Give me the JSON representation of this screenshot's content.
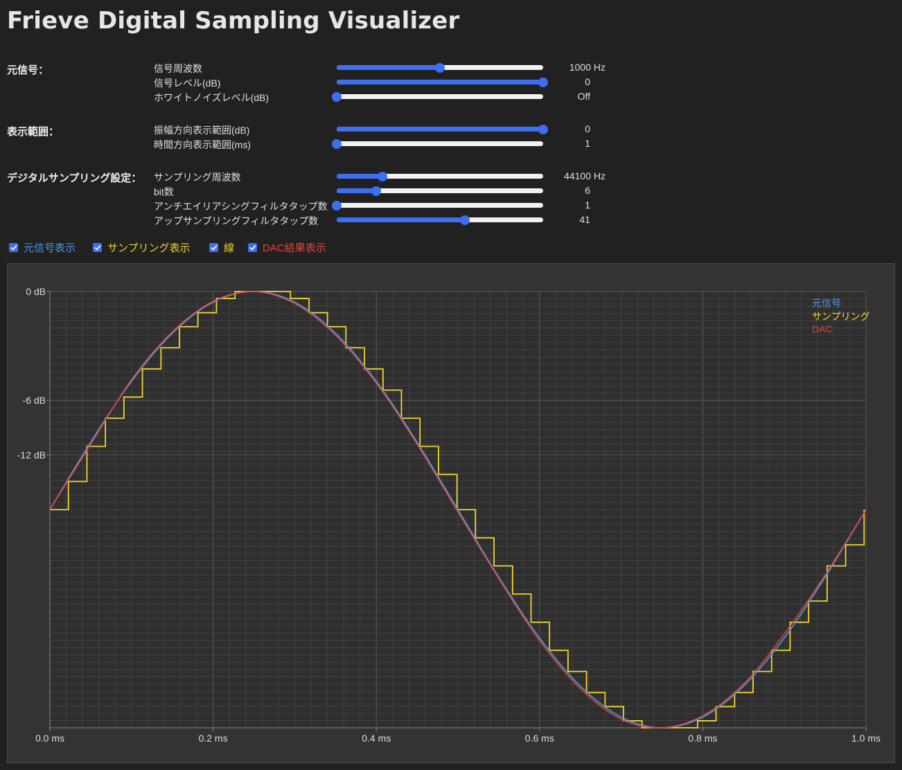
{
  "page": {
    "title": "Frieve Digital Sampling Visualizer"
  },
  "sections": {
    "signal": {
      "label": "元信号：",
      "params": [
        {
          "label": "信号周波数",
          "value": "1000 Hz",
          "position": 0.5
        },
        {
          "label": "信号レベル(dB)",
          "value": "0",
          "position": 1.0
        },
        {
          "label": "ホワイトノイズレベル(dB)",
          "value": "Off",
          "position": 0.0
        }
      ]
    },
    "display": {
      "label": "表示範囲：",
      "params": [
        {
          "label": "振幅方向表示範囲(dB)",
          "value": "0",
          "position": 1.0
        },
        {
          "label": "時間方向表示範囲(ms)",
          "value": "1",
          "position": 0.0
        }
      ]
    },
    "sampling": {
      "label": "デジタルサンプリング設定：",
      "params": [
        {
          "label": "サンプリング周波数",
          "value": "44100 Hz",
          "position": 0.22
        },
        {
          "label": "bit数",
          "value": "6",
          "position": 0.19
        },
        {
          "label": "アンチエイリアシングフィルタタップ数",
          "value": "1",
          "position": 0.0
        },
        {
          "label": "アップサンプリングフィルタタップ数",
          "value": "41",
          "position": 0.62
        }
      ]
    }
  },
  "toggles": [
    {
      "label": "元信号表示",
      "checked": true,
      "color": "#4d9ce6"
    },
    {
      "label": "サンプリング表示",
      "checked": true,
      "color": "#f2d62e"
    },
    {
      "label": "線",
      "checked": true,
      "color": "#f2d62e"
    },
    {
      "label": "DAC結果表示",
      "checked": true,
      "color": "#e8453c"
    }
  ],
  "chart_data": {
    "type": "line",
    "title": "",
    "xlabel": "",
    "ylabel": "",
    "xlim": [
      0,
      1.0
    ],
    "ylim": [
      -1,
      1
    ],
    "x_ticks": [
      {
        "value": 0.0,
        "label": "0.0 ms"
      },
      {
        "value": 0.2,
        "label": "0.2 ms"
      },
      {
        "value": 0.4,
        "label": "0.4 ms"
      },
      {
        "value": 0.6,
        "label": "0.6 ms"
      },
      {
        "value": 0.8,
        "label": "0.8 ms"
      },
      {
        "value": 1.0,
        "label": "1.0 ms"
      }
    ],
    "y_ticks": [
      {
        "value": 1.0,
        "label": "0 dB"
      },
      {
        "value": 0.501,
        "label": "-6 dB"
      },
      {
        "value": 0.251,
        "label": "-12 dB"
      }
    ],
    "grid": true,
    "legend_position": "top-right",
    "series": [
      {
        "name": "元信号",
        "kind": "smooth-line",
        "color": "#4d9ce6",
        "x": [
          0.0,
          0.05,
          0.1,
          0.15,
          0.2,
          0.25,
          0.3,
          0.35,
          0.4,
          0.45,
          0.5,
          0.55,
          0.6,
          0.65,
          0.7,
          0.75,
          0.8,
          0.85,
          0.9,
          0.95,
          1.0
        ],
        "y": [
          0.0,
          0.309,
          0.588,
          0.809,
          0.951,
          1.0,
          0.951,
          0.809,
          0.588,
          0.309,
          0.0,
          -0.309,
          -0.588,
          -0.809,
          -0.951,
          -1.0,
          -0.951,
          -0.809,
          -0.588,
          -0.309,
          0.0
        ]
      },
      {
        "name": "サンプリング",
        "kind": "step",
        "color": "#f2d62e",
        "x": [
          0.0,
          0.0227,
          0.0454,
          0.068,
          0.0907,
          0.1134,
          0.1361,
          0.1587,
          0.1814,
          0.2041,
          0.2268,
          0.2494,
          0.2721,
          0.2948,
          0.3175,
          0.3401,
          0.3628,
          0.3855,
          0.4082,
          0.4308,
          0.4535,
          0.4762,
          0.4989,
          0.5215,
          0.5442,
          0.5669,
          0.5896,
          0.6122,
          0.6349,
          0.6576,
          0.6803,
          0.7029,
          0.7256,
          0.7483,
          0.771,
          0.7937,
          0.8163,
          0.839,
          0.8617,
          0.8844,
          0.907,
          0.9297,
          0.9524,
          0.9751,
          0.9977
        ],
        "y": [
          0.0,
          0.129,
          0.29,
          0.419,
          0.516,
          0.645,
          0.742,
          0.839,
          0.903,
          0.968,
          1.0,
          1.0,
          1.0,
          0.968,
          0.903,
          0.839,
          0.742,
          0.645,
          0.548,
          0.419,
          0.29,
          0.161,
          0.0,
          -0.129,
          -0.258,
          -0.387,
          -0.516,
          -0.645,
          -0.742,
          -0.839,
          -0.903,
          -0.968,
          -1.0,
          -1.0,
          -1.0,
          -0.968,
          -0.903,
          -0.839,
          -0.742,
          -0.645,
          -0.516,
          -0.419,
          -0.258,
          -0.161,
          0.0
        ]
      },
      {
        "name": "DAC",
        "kind": "smooth-line",
        "color": "#e8453c",
        "x": [
          0.0,
          0.05,
          0.1,
          0.15,
          0.2,
          0.25,
          0.3,
          0.35,
          0.4,
          0.45,
          0.5,
          0.55,
          0.6,
          0.65,
          0.7,
          0.75,
          0.8,
          0.85,
          0.9,
          0.95,
          1.0
        ],
        "y": [
          0.0,
          0.3,
          0.595,
          0.815,
          0.955,
          1.0,
          0.945,
          0.8,
          0.58,
          0.3,
          -0.01,
          -0.315,
          -0.6,
          -0.82,
          -0.96,
          -1.0,
          -0.945,
          -0.8,
          -0.57,
          -0.3,
          0.0
        ]
      }
    ]
  }
}
